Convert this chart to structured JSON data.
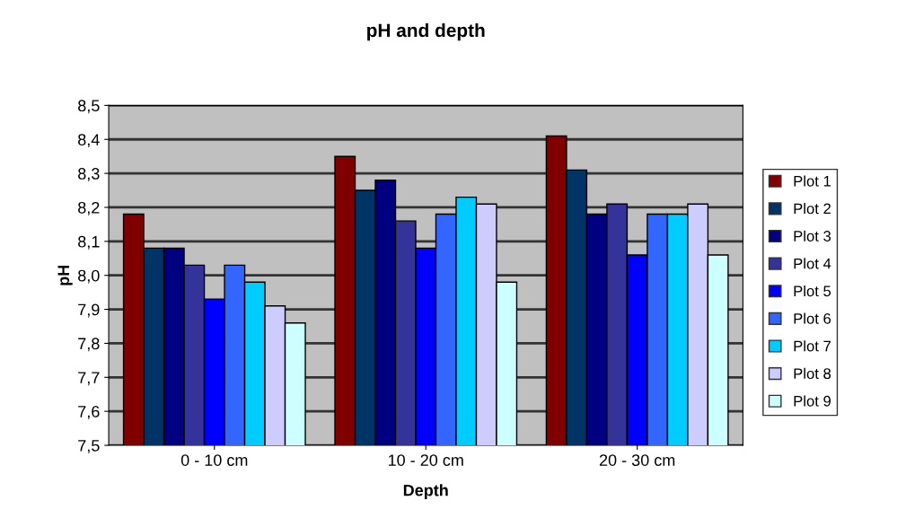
{
  "chart_data": {
    "type": "bar",
    "title": "pH and depth",
    "xlabel": "Depth",
    "ylabel": "pH",
    "categories": [
      "0 - 10 cm",
      "10 - 20 cm",
      "20 - 30 cm"
    ],
    "series": [
      {
        "name": "Plot 1",
        "color": "#800000",
        "values": [
          8.18,
          8.35,
          8.41
        ]
      },
      {
        "name": "Plot 2",
        "color": "#003366",
        "values": [
          8.08,
          8.25,
          8.31
        ]
      },
      {
        "name": "Plot 3",
        "color": "#000080",
        "values": [
          8.08,
          8.28,
          8.18
        ]
      },
      {
        "name": "Plot 4",
        "color": "#333399",
        "values": [
          8.03,
          8.16,
          8.21
        ]
      },
      {
        "name": "Plot 5",
        "color": "#0000ff",
        "values": [
          7.93,
          8.08,
          8.06
        ]
      },
      {
        "name": "Plot 6",
        "color": "#3366ff",
        "values": [
          8.03,
          8.18,
          8.18
        ]
      },
      {
        "name": "Plot 7",
        "color": "#00ccff",
        "values": [
          7.98,
          8.23,
          8.18
        ]
      },
      {
        "name": "Plot 8",
        "color": "#ccccff",
        "values": [
          7.91,
          8.21,
          8.21
        ]
      },
      {
        "name": "Plot 9",
        "color": "#ccffff",
        "values": [
          7.86,
          7.98,
          8.06
        ]
      }
    ],
    "ylim": [
      7.5,
      8.5
    ],
    "yticks": [
      {
        "value": 7.5,
        "label": "7,5"
      },
      {
        "value": 7.6,
        "label": "7,6"
      },
      {
        "value": 7.7,
        "label": "7,7"
      },
      {
        "value": 7.8,
        "label": "7,8"
      },
      {
        "value": 7.9,
        "label": "7,9"
      },
      {
        "value": 8.0,
        "label": "8,0"
      },
      {
        "value": 8.1,
        "label": "8,1"
      },
      {
        "value": 8.2,
        "label": "8,2"
      },
      {
        "value": 8.3,
        "label": "8,3"
      },
      {
        "value": 8.4,
        "label": "8,4"
      },
      {
        "value": 8.5,
        "label": "8,5"
      }
    ],
    "grid": "y",
    "legend": "right"
  }
}
